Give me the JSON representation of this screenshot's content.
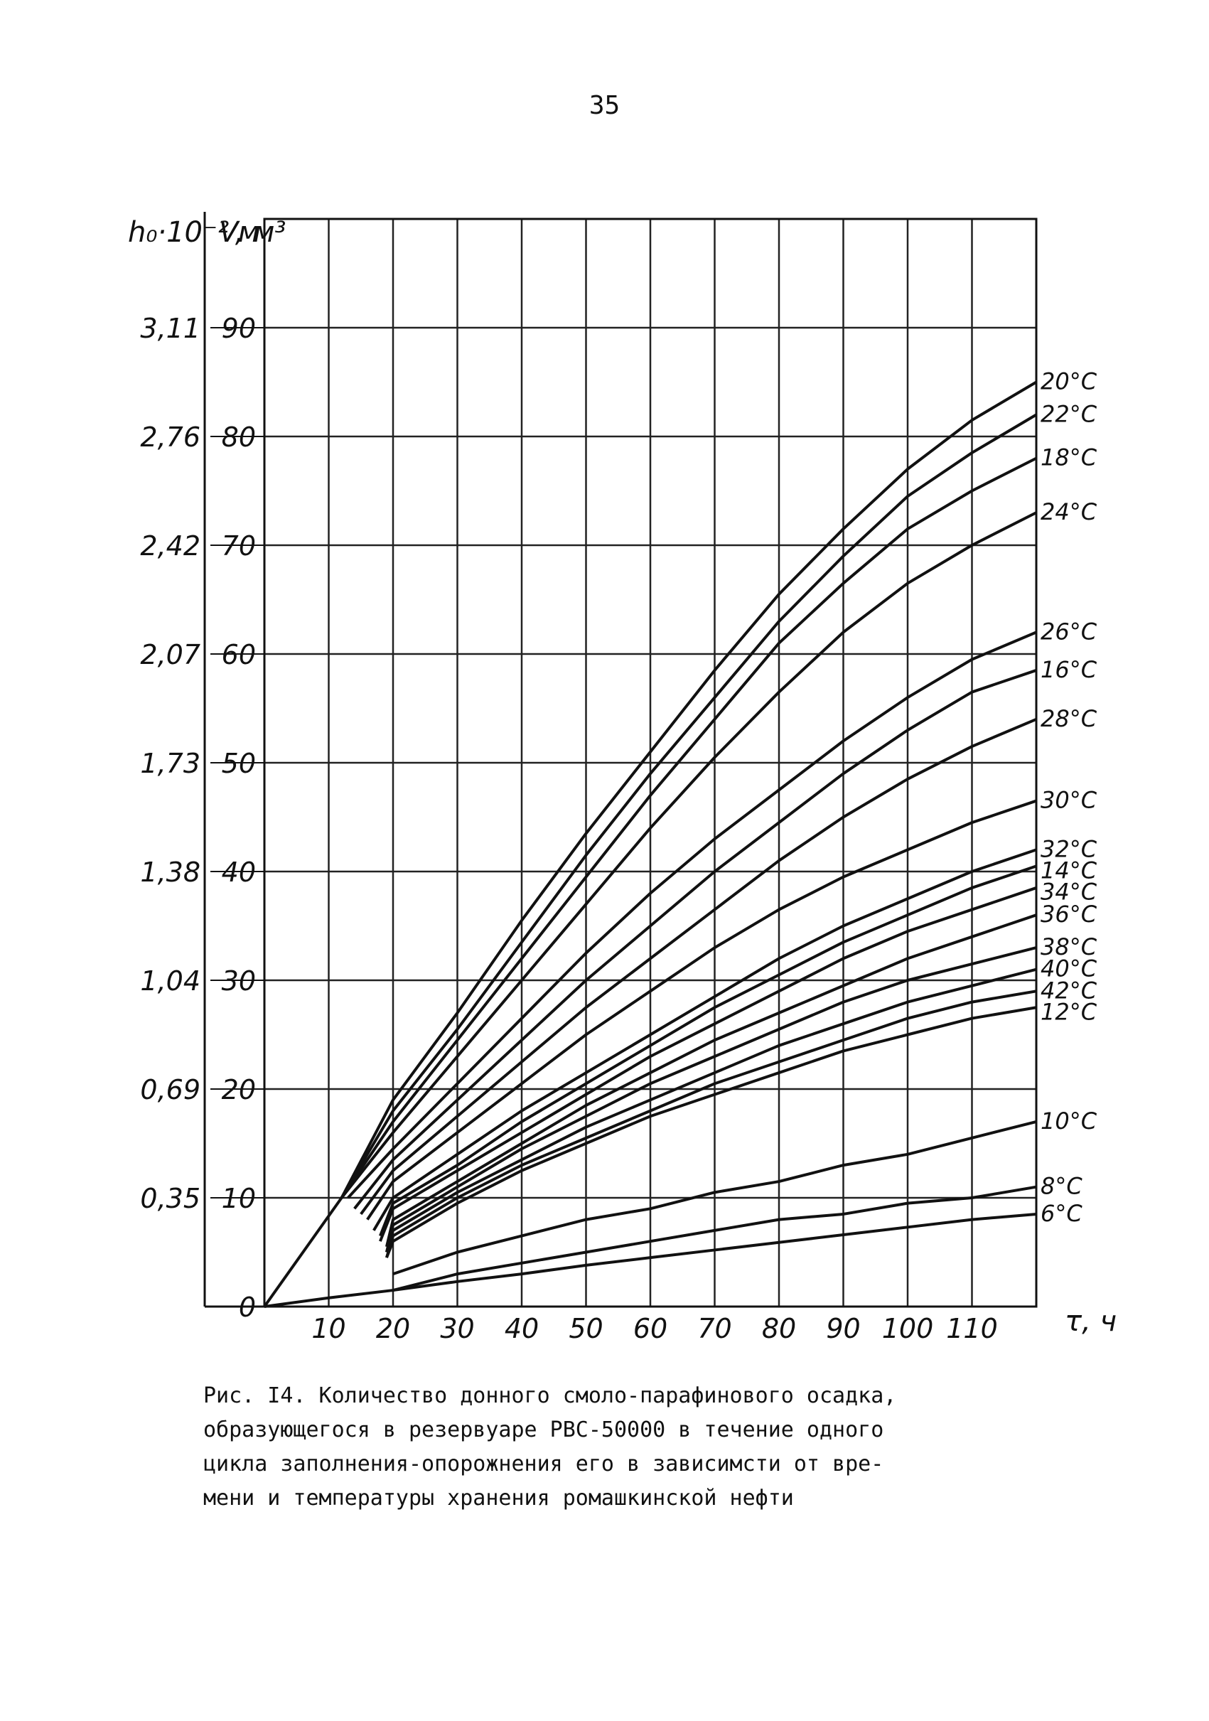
{
  "page_number": "35",
  "caption": "Рис. I4. Количество донного смоло-парафинового осадка,\nобразующегося в резервуаре РВС-50000 в течение одного\nцикла заполнения-опорожнения его в зависимсти от вре-\nмени и температуры хранения ромашкинской нефти",
  "chart_data": {
    "type": "line",
    "title": "",
    "xlabel": "τ, ч",
    "ylabel": "V, м³",
    "ylabel_secondary": "h₀·10⁻² м",
    "xlim": [
      0,
      120
    ],
    "ylim": [
      0,
      100
    ],
    "grid": true,
    "x_ticks": [
      10,
      20,
      30,
      40,
      50,
      60,
      70,
      80,
      90,
      100,
      110
    ],
    "x_tick_labels": [
      "10",
      "20",
      "30",
      "40",
      "50",
      "60",
      "70",
      "80",
      "90",
      "100",
      "110"
    ],
    "y_ticks": [
      0,
      10,
      20,
      30,
      40,
      50,
      60,
      70,
      80,
      90
    ],
    "y_tick_labels": [
      "0",
      "10",
      "20",
      "30",
      "40",
      "50",
      "60",
      "70",
      "80",
      "90"
    ],
    "y2_tick_labels": [
      "",
      "0,35",
      "0,69",
      "1,04",
      "1,38",
      "1,73",
      "2,07",
      "2,42",
      "2,76",
      "3,11"
    ],
    "initial_segment": {
      "x": [
        0,
        12
      ],
      "y": [
        0,
        10
      ]
    },
    "series": [
      {
        "name": "20°C",
        "x": [
          12,
          20,
          30,
          40,
          50,
          60,
          70,
          80,
          90,
          100,
          110,
          120
        ],
        "y": [
          10,
          19,
          27,
          35.5,
          43.5,
          51,
          58.5,
          65.5,
          71.5,
          77,
          81.5,
          85
        ]
      },
      {
        "name": "22°C",
        "x": [
          12,
          20,
          30,
          40,
          50,
          60,
          70,
          80,
          90,
          100,
          110,
          120
        ],
        "y": [
          10,
          18,
          25.5,
          33.5,
          41.5,
          49,
          56,
          63,
          69,
          74.5,
          78.5,
          82
        ]
      },
      {
        "name": "18°C",
        "x": [
          12,
          20,
          30,
          40,
          50,
          60,
          70,
          80,
          90,
          100,
          110,
          120
        ],
        "y": [
          10,
          17,
          24.5,
          32,
          39.5,
          47,
          54,
          61,
          66.5,
          71.5,
          75,
          78
        ]
      },
      {
        "name": "24°C",
        "x": [
          12,
          20,
          30,
          40,
          50,
          60,
          70,
          80,
          90,
          100,
          110,
          120
        ],
        "y": [
          10,
          16,
          23,
          30,
          37,
          44,
          50.5,
          56.5,
          62,
          66.5,
          70,
          73
        ]
      },
      {
        "name": "26°C",
        "x": [
          13,
          20,
          30,
          40,
          50,
          60,
          70,
          80,
          90,
          100,
          110,
          120
        ],
        "y": [
          10,
          14.5,
          20.5,
          26.5,
          32.5,
          38,
          43,
          47.5,
          52,
          56,
          59.5,
          62
        ]
      },
      {
        "name": "16°C",
        "x": [
          14,
          20,
          30,
          40,
          50,
          60,
          70,
          80,
          90,
          100,
          110,
          120
        ],
        "y": [
          9,
          13.5,
          19,
          24.5,
          30,
          35,
          40,
          44.5,
          49,
          53,
          56.5,
          58.5
        ]
      },
      {
        "name": "28°C",
        "x": [
          15,
          20,
          30,
          40,
          50,
          60,
          70,
          80,
          90,
          100,
          110,
          120
        ],
        "y": [
          8.5,
          12.5,
          17.5,
          22.5,
          27.5,
          32,
          36.5,
          41,
          45,
          48.5,
          51.5,
          54
        ]
      },
      {
        "name": "30°C",
        "x": [
          16,
          20,
          30,
          40,
          50,
          60,
          70,
          80,
          90,
          100,
          110,
          120
        ],
        "y": [
          8,
          11.5,
          16,
          20.5,
          25,
          29,
          33,
          36.5,
          39.5,
          42,
          44.5,
          46.5
        ]
      },
      {
        "name": "32°C",
        "x": [
          17,
          20,
          30,
          40,
          50,
          60,
          70,
          80,
          90,
          100,
          110,
          120
        ],
        "y": [
          7,
          10,
          14,
          18,
          21.5,
          25,
          28.5,
          32,
          35,
          37.5,
          40,
          42
        ]
      },
      {
        "name": "14°C",
        "x": [
          18,
          20,
          30,
          40,
          50,
          60,
          70,
          80,
          90,
          100,
          110,
          120
        ],
        "y": [
          6.5,
          9.5,
          13,
          17,
          20.5,
          24,
          27.5,
          30.5,
          33.5,
          36,
          38.5,
          40.5
        ]
      },
      {
        "name": "34°C",
        "x": [
          18,
          20,
          30,
          40,
          50,
          60,
          70,
          80,
          90,
          100,
          110,
          120
        ],
        "y": [
          6,
          9,
          12.5,
          16,
          19.5,
          23,
          26,
          29,
          32,
          34.5,
          36.5,
          38.5
        ]
      },
      {
        "name": "36°C",
        "x": [
          19,
          20,
          30,
          40,
          50,
          60,
          70,
          80,
          90,
          100,
          110,
          120
        ],
        "y": [
          5.5,
          8,
          11.5,
          15,
          18.5,
          21.5,
          24.5,
          27,
          29.5,
          32,
          34,
          36
        ]
      },
      {
        "name": "38°C",
        "x": [
          19,
          20,
          30,
          40,
          50,
          60,
          70,
          80,
          90,
          100,
          110,
          120
        ],
        "y": [
          5,
          7.5,
          11,
          14.5,
          17.5,
          20.5,
          23,
          25.5,
          28,
          30,
          31.5,
          33
        ]
      },
      {
        "name": "40°C",
        "x": [
          19,
          20,
          30,
          40,
          50,
          60,
          70,
          80,
          90,
          100,
          110,
          120
        ],
        "y": [
          5,
          7,
          10.5,
          13.5,
          16.5,
          19,
          21.5,
          24,
          26,
          28,
          29.5,
          31
        ]
      },
      {
        "name": "42°C",
        "x": [
          19,
          20,
          30,
          40,
          50,
          60,
          70,
          80,
          90,
          100,
          110,
          120
        ],
        "y": [
          4.5,
          6.5,
          10,
          13,
          15.5,
          18,
          20.5,
          22.5,
          24.5,
          26.5,
          28,
          29
        ]
      },
      {
        "name": "12°C",
        "x": [
          19,
          20,
          30,
          40,
          50,
          60,
          70,
          80,
          90,
          100,
          110,
          120
        ],
        "y": [
          4.5,
          6,
          9.5,
          12.5,
          15,
          17.5,
          19.5,
          21.5,
          23.5,
          25,
          26.5,
          27.5
        ]
      },
      {
        "name": "10°C",
        "x": [
          20,
          30,
          40,
          50,
          60,
          70,
          80,
          90,
          100,
          110,
          120
        ],
        "y": [
          3,
          5,
          6.5,
          8,
          9,
          10.5,
          11.5,
          13,
          14,
          15.5,
          17
        ]
      },
      {
        "name": "8°C",
        "x": [
          20,
          30,
          40,
          50,
          60,
          70,
          80,
          90,
          100,
          110,
          120
        ],
        "y": [
          1.5,
          3,
          4,
          5,
          6,
          7,
          8,
          8.5,
          9.5,
          10,
          11
        ]
      },
      {
        "name": "6°C",
        "x": [
          0,
          10,
          20,
          30,
          40,
          50,
          60,
          70,
          80,
          90,
          100,
          110,
          120
        ],
        "y": [
          0,
          0.8,
          1.5,
          2.3,
          3,
          3.8,
          4.5,
          5.2,
          5.9,
          6.6,
          7.3,
          8,
          8.5
        ]
      }
    ]
  }
}
